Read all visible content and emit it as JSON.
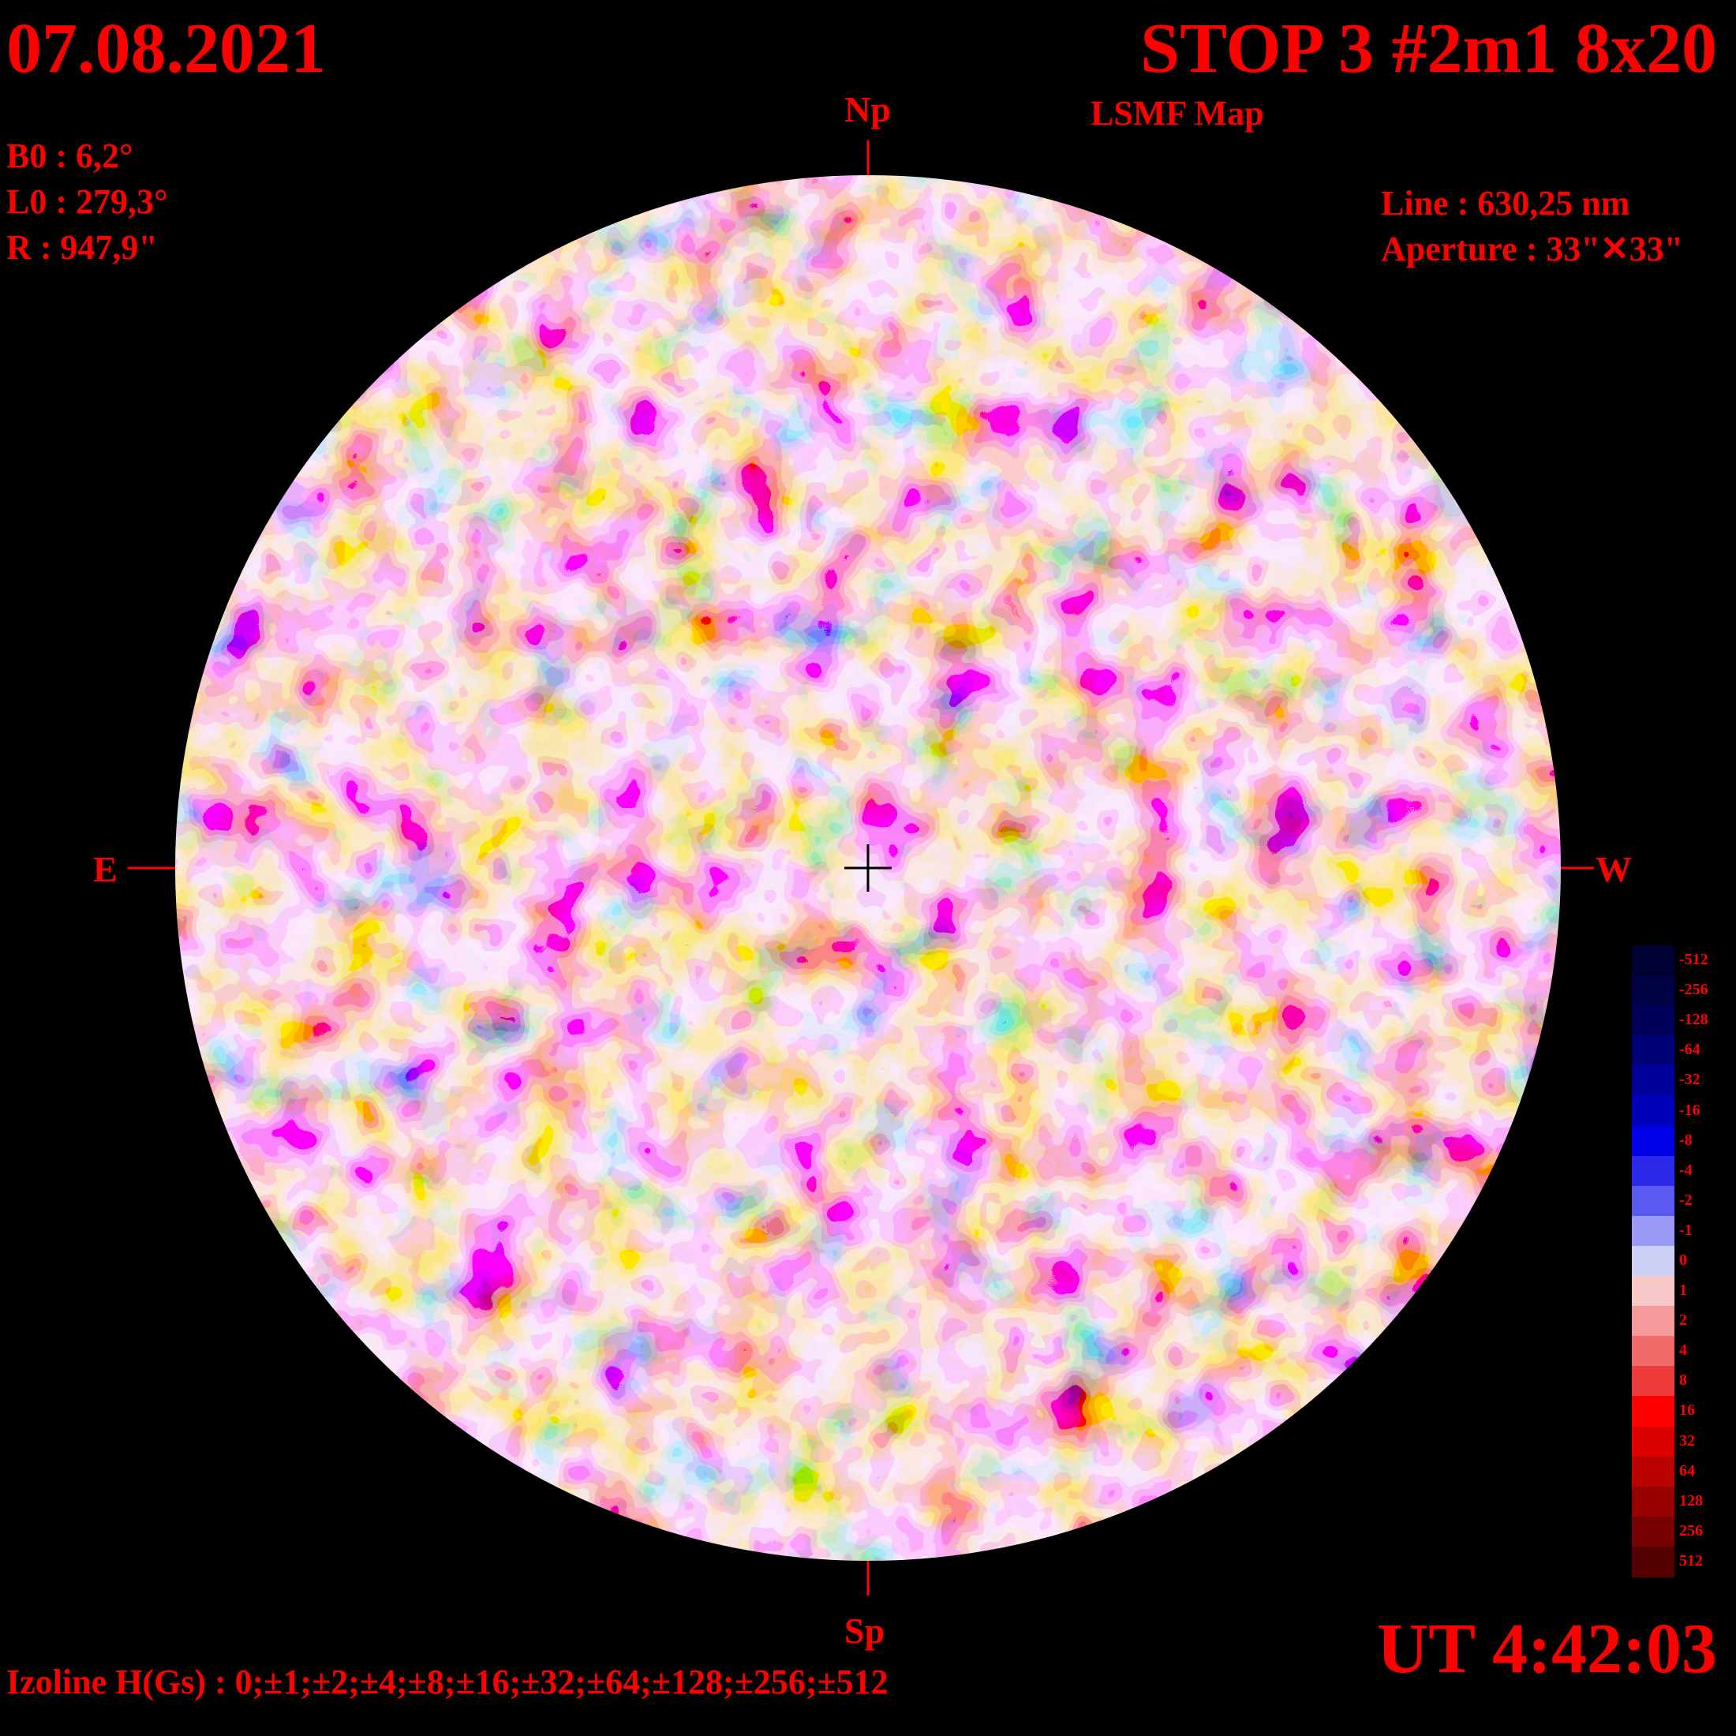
{
  "header": {
    "date": "07.08.2021",
    "title": "STOP 3 #2m1 8x20",
    "subtitle": "LSMF  Map"
  },
  "params": {
    "b0": "B0 : 6,2°",
    "l0": "L0 : 279,3°",
    "r": "R  : 947,9\"",
    "line": "Line :  630,25 nm",
    "aperture": "Aperture : 33\"✕33\""
  },
  "directions": {
    "north": "Np",
    "south": "Sp",
    "east": "E",
    "west": "W"
  },
  "footer": {
    "time": "UT 4:42:03",
    "izoline": "Izoline H(Gs) : 0;±1;±2;±4;±8;±16;±32;±64;±128;±256;±512"
  },
  "legend": {
    "labels": [
      "-512",
      "-256",
      "-128",
      "-64",
      "-32",
      "-16",
      "-8",
      "-4",
      "-2",
      "-1",
      "0",
      "1",
      "2",
      "4",
      "8",
      "16",
      "32",
      "64",
      "128",
      "256",
      "512"
    ],
    "colors": [
      "#000033",
      "#000044",
      "#00005a",
      "#000078",
      "#00009a",
      "#0000bb",
      "#0000e6",
      "#2a2ae8",
      "#5a5af0",
      "#9a9af5",
      "#cfd0f8",
      "#f8c8c8",
      "#f59a9a",
      "#f06a6a",
      "#ee3c3c",
      "#ff0000",
      "#dd0000",
      "#bb0000",
      "#990000",
      "#770000",
      "#550000"
    ],
    "magnetic_levels": [
      "#0000e6",
      "#2a2ae8",
      "#5a5af0",
      "#9a9af5",
      "#cfd0f8",
      "#f8c8c8",
      "#f59a9a",
      "#f06a6a",
      "#ee3c3c",
      "#ff0000",
      "#cc0000",
      "#990000"
    ]
  }
}
